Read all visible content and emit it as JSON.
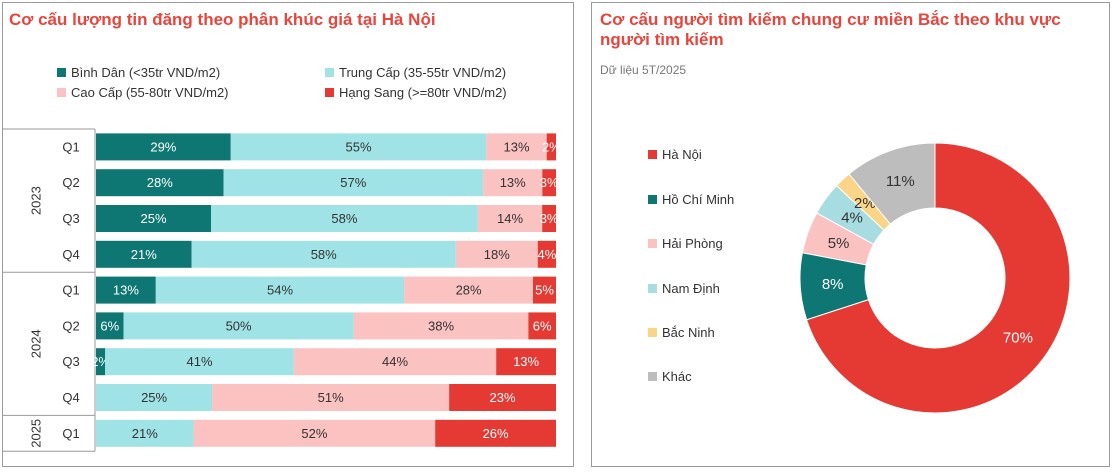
{
  "left_chart": {
    "title": "Cơ cấu lượng tin đăng theo phân khúc giá tại Hà Nội",
    "legend": [
      {
        "label": "Bình Dân (<35tr VND/m2)",
        "color": "#0e7673"
      },
      {
        "label": "Trung Cấp (35-55tr VND/m2)",
        "color": "#9fe3e6"
      },
      {
        "label": "Cao Cấp (55-80tr VND/m2)",
        "color": "#fbc2c2"
      },
      {
        "label": "Hạng Sang (>=80tr VND/m2)",
        "color": "#e53a33"
      }
    ]
  },
  "right_chart": {
    "title": "Cơ cấu người tìm kiếm chung cư miền Bắc theo khu vực người tìm kiếm",
    "subtitle": "Dữ liệu 5T/2025",
    "legend": [
      {
        "label": "Hà Nội",
        "color": "#e53a33"
      },
      {
        "label": "Hồ Chí Minh",
        "color": "#0e7673"
      },
      {
        "label": "Hải Phòng",
        "color": "#fbc2c2"
      },
      {
        "label": "Nam Định",
        "color": "#a7dde1"
      },
      {
        "label": "Bắc Ninh",
        "color": "#fad487"
      },
      {
        "label": "Khác",
        "color": "#bdbdbd"
      }
    ]
  },
  "chart_data": [
    {
      "type": "bar",
      "stacked": "percent",
      "orientation": "horizontal",
      "title": "Cơ cấu lượng tin đăng theo phân khúc giá tại Hà Nội",
      "groups": [
        {
          "label": "2023",
          "categories": [
            "Q1",
            "Q2",
            "Q3",
            "Q4"
          ]
        },
        {
          "label": "2024",
          "categories": [
            "Q1",
            "Q2",
            "Q3",
            "Q4"
          ]
        },
        {
          "label": "2025",
          "categories": [
            "Q1"
          ]
        }
      ],
      "categories": [
        "Q1",
        "Q2",
        "Q3",
        "Q4",
        "Q1",
        "Q2",
        "Q3",
        "Q4",
        "Q1"
      ],
      "series": [
        {
          "name": "Bình Dân (<35tr VND/m2)",
          "color": "#0e7673",
          "text_color": "#ffffff",
          "values": [
            29,
            28,
            25,
            21,
            13,
            6,
            2,
            0,
            0
          ],
          "labels": [
            "29%",
            "28%",
            "25%",
            "21%",
            "13%",
            "6%",
            "2%",
            "",
            ""
          ]
        },
        {
          "name": "Trung Cấp (35-55tr VND/m2)",
          "color": "#9fe3e6",
          "text_color": "#333333",
          "values": [
            55,
            57,
            58,
            58,
            54,
            50,
            41,
            25,
            21
          ],
          "labels": [
            "55%",
            "57%",
            "58%",
            "58%",
            "54%",
            "50%",
            "41%",
            "25%",
            "21%"
          ]
        },
        {
          "name": "Cao Cấp (55-80tr VND/m2)",
          "color": "#fbc2c2",
          "text_color": "#333333",
          "values": [
            13,
            13,
            14,
            18,
            28,
            38,
            44,
            51,
            52
          ],
          "labels": [
            "13%",
            "13%",
            "14%",
            "18%",
            "28%",
            "38%",
            "44%",
            "51%",
            "52%"
          ]
        },
        {
          "name": "Hạng Sang (>=80tr VND/m2)",
          "color": "#e53a33",
          "text_color": "#ffffff",
          "values": [
            2,
            3,
            3,
            4,
            5,
            6,
            13,
            23,
            26
          ],
          "labels": [
            "2%",
            "3%",
            "3%",
            "4%",
            "5%",
            "6%",
            "13%",
            "23%",
            "26%"
          ]
        }
      ]
    },
    {
      "type": "pie",
      "donut": true,
      "title": "Cơ cấu người tìm kiếm chung cư miền Bắc theo khu vực người tìm kiếm",
      "subtitle": "Dữ liệu 5T/2025",
      "slices": [
        {
          "name": "Hà Nội",
          "value": 70,
          "label": "70%",
          "color": "#e53a33",
          "text_color": "#ffffff"
        },
        {
          "name": "Hồ Chí Minh",
          "value": 8,
          "label": "8%",
          "color": "#0e7673",
          "text_color": "#ffffff"
        },
        {
          "name": "Hải Phòng",
          "value": 5,
          "label": "5%",
          "color": "#fbc2c2",
          "text_color": "#333333"
        },
        {
          "name": "Nam Định",
          "value": 4,
          "label": "4%",
          "color": "#a7dde1",
          "text_color": "#333333"
        },
        {
          "name": "Bắc Ninh",
          "value": 2,
          "label": "2%",
          "color": "#fad487",
          "text_color": "#333333"
        },
        {
          "name": "Khác",
          "value": 11,
          "label": "11%",
          "color": "#bdbdbd",
          "text_color": "#333333"
        }
      ]
    }
  ]
}
